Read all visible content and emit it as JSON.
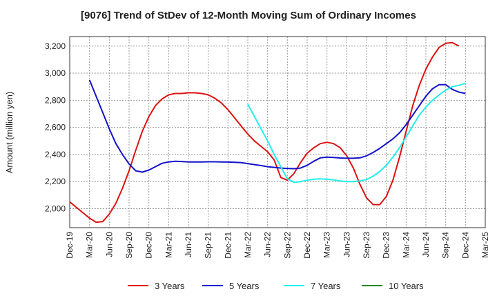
{
  "chart_data": {
    "type": "line",
    "title": "[9076]  Trend of StDev of 12-Month Moving Sum of Ordinary Incomes",
    "xlabel": "",
    "ylabel": "Amount (million yen)",
    "ylim": [
      1860,
      3270
    ],
    "yticks": [
      2000,
      2200,
      2400,
      2600,
      2800,
      3000,
      3200
    ],
    "ytick_labels": [
      "2,000",
      "2,200",
      "2,400",
      "2,600",
      "2,800",
      "3,000",
      "3,200"
    ],
    "xticks": [
      "Dec-19",
      "Mar-20",
      "Jun-20",
      "Sep-20",
      "Dec-20",
      "Mar-21",
      "Jun-21",
      "Sep-21",
      "Dec-21",
      "Mar-22",
      "Jun-22",
      "Sep-22",
      "Dec-22",
      "Mar-23",
      "Jun-23",
      "Sep-23",
      "Dec-23",
      "Mar-24",
      "Jun-24",
      "Sep-24",
      "Dec-24",
      "Mar-25"
    ],
    "months": [
      "Dec-19",
      "Jan-20",
      "Feb-20",
      "Mar-20",
      "Apr-20",
      "May-20",
      "Jun-20",
      "Jul-20",
      "Aug-20",
      "Sep-20",
      "Oct-20",
      "Nov-20",
      "Dec-20",
      "Jan-21",
      "Feb-21",
      "Mar-21",
      "Apr-21",
      "May-21",
      "Jun-21",
      "Jul-21",
      "Aug-21",
      "Sep-21",
      "Oct-21",
      "Nov-21",
      "Dec-21",
      "Jan-22",
      "Feb-22",
      "Mar-22",
      "Apr-22",
      "May-22",
      "Jun-22",
      "Jul-22",
      "Aug-22",
      "Sep-22",
      "Oct-22",
      "Nov-22",
      "Dec-22",
      "Jan-23",
      "Feb-23",
      "Mar-23",
      "Apr-23",
      "May-23",
      "Jun-23",
      "Jul-23",
      "Aug-23",
      "Sep-23",
      "Oct-23",
      "Nov-23",
      "Dec-23",
      "Jan-24",
      "Feb-24",
      "Mar-24",
      "Apr-24",
      "May-24",
      "Jun-24",
      "Jul-24",
      "Aug-24",
      "Sep-24",
      "Oct-24",
      "Nov-24",
      "Dec-24",
      "Jan-25",
      "Feb-25",
      "Mar-25"
    ],
    "grid": true,
    "legend_position": "bottom",
    "series": [
      {
        "name": "3 Years",
        "color": "#dd1111",
        "start": "Dec-19",
        "values": [
          2050,
          2010,
          1970,
          1930,
          1900,
          1905,
          1960,
          2040,
          2150,
          2280,
          2430,
          2570,
          2680,
          2760,
          2810,
          2840,
          2850,
          2850,
          2855,
          2855,
          2850,
          2840,
          2815,
          2780,
          2730,
          2670,
          2610,
          2550,
          2500,
          2460,
          2420,
          2360,
          2230,
          2210,
          2260,
          2340,
          2410,
          2450,
          2480,
          2490,
          2480,
          2450,
          2390,
          2300,
          2180,
          2080,
          2030,
          2030,
          2090,
          2210,
          2380,
          2570,
          2760,
          2910,
          3030,
          3120,
          3190,
          3220,
          3225,
          3200
        ]
      },
      {
        "name": "5 Years",
        "color": "#1111cc",
        "start": "Mar-20",
        "values": [
          2950,
          2830,
          2710,
          2590,
          2480,
          2400,
          2330,
          2280,
          2270,
          2285,
          2310,
          2335,
          2345,
          2350,
          2348,
          2345,
          2345,
          2345,
          2346,
          2346,
          2345,
          2344,
          2342,
          2340,
          2333,
          2325,
          2318,
          2310,
          2305,
          2300,
          2296,
          2295,
          2300,
          2320,
          2350,
          2375,
          2380,
          2378,
          2374,
          2372,
          2372,
          2375,
          2390,
          2415,
          2445,
          2480,
          2515,
          2560,
          2620,
          2690,
          2760,
          2830,
          2885,
          2915,
          2915,
          2880,
          2860,
          2850
        ]
      },
      {
        "name": "7 Years",
        "color": "#22eeee",
        "start": "Mar-22",
        "values": [
          2770,
          2680,
          2590,
          2500,
          2400,
          2310,
          2220,
          2195,
          2200,
          2210,
          2218,
          2220,
          2218,
          2212,
          2205,
          2200,
          2200,
          2205,
          2215,
          2240,
          2275,
          2320,
          2380,
          2450,
          2530,
          2610,
          2690,
          2750,
          2800,
          2840,
          2875,
          2900,
          2910,
          2925
        ]
      },
      {
        "name": "10 Years",
        "color": "#228822",
        "start": "Dec-24",
        "values": []
      }
    ]
  }
}
